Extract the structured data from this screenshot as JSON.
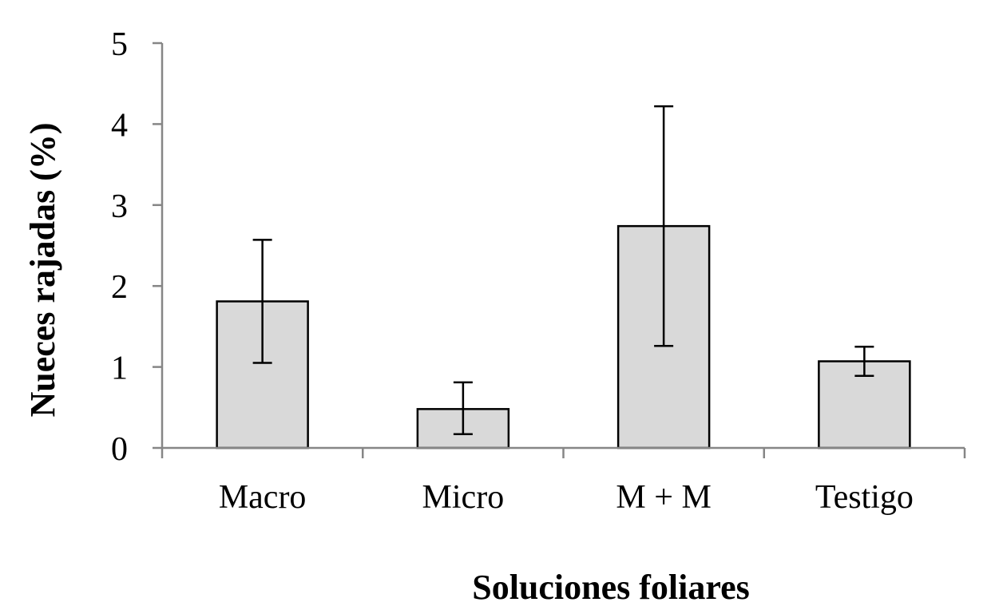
{
  "chart_data": {
    "type": "bar",
    "title": "",
    "xlabel": "Soluciones foliares",
    "ylabel": "Nueces rajadas (%)",
    "categories": [
      "Macro",
      "Micro",
      "M + M",
      "Testigo"
    ],
    "values": [
      1.81,
      0.48,
      2.74,
      1.07
    ],
    "error_low": [
      1.05,
      0.17,
      1.26,
      0.89
    ],
    "error_high": [
      2.57,
      0.81,
      4.22,
      1.25
    ],
    "ylim": [
      0,
      5
    ],
    "yticks": [
      0,
      1,
      2,
      3,
      4,
      5
    ],
    "grid": false,
    "legend": "none",
    "colors": {
      "bar_fill": "#d9d9d9",
      "bar_stroke": "#000000",
      "axis": "#868686",
      "error_bar": "#000000"
    }
  }
}
